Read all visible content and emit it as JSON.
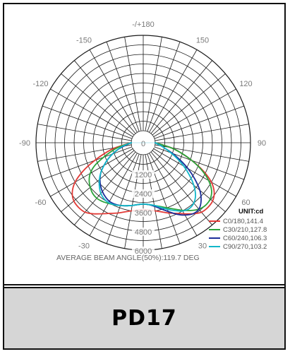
{
  "product": {
    "name": "PD17"
  },
  "chart_data": {
    "type": "polar",
    "angle_labels": [
      {
        "deg": 180,
        "text": "-/+180"
      },
      {
        "deg": -150,
        "text": "-150"
      },
      {
        "deg": 150,
        "text": "150"
      },
      {
        "deg": -120,
        "text": "-120"
      },
      {
        "deg": 120,
        "text": "120"
      },
      {
        "deg": -90,
        "text": "-90"
      },
      {
        "deg": 90,
        "text": "90"
      },
      {
        "deg": -60,
        "text": "-60"
      },
      {
        "deg": 60,
        "text": "60"
      },
      {
        "deg": -30,
        "text": "-30"
      },
      {
        "deg": 30,
        "text": "30"
      },
      {
        "deg": 0,
        "text": "0"
      }
    ],
    "radial_ticks": [
      {
        "value": 0,
        "text": "0"
      },
      {
        "value": 1200,
        "text": "1200"
      },
      {
        "value": 2400,
        "text": "2400"
      },
      {
        "value": 3600,
        "text": "3600"
      },
      {
        "value": 4800,
        "text": "4800"
      },
      {
        "value": 6000,
        "text": "6000"
      }
    ],
    "r_max": 6000,
    "r_inner": 600,
    "unit_label": "UNIT:cd",
    "beam_angle_text": "AVERAGE BEAM ANGLE(50%):119.7 DEG",
    "series": [
      {
        "name": "C0/180,141.4",
        "color": "#e23a36",
        "angles": [
          -90,
          -80,
          -75,
          -70,
          -65,
          -60,
          -55,
          -50,
          -45,
          -40,
          -35,
          -30,
          -25,
          -20,
          -15,
          -10,
          -5,
          0,
          5,
          10,
          15,
          20,
          25,
          30,
          35,
          40,
          45,
          50,
          55,
          60,
          65,
          70,
          75,
          80,
          90
        ],
        "values": [
          0,
          1000,
          1700,
          2500,
          3400,
          4200,
          4700,
          4950,
          5000,
          4950,
          4700,
          4400,
          4150,
          3950,
          3750,
          3600,
          3500,
          3450,
          3500,
          3600,
          3750,
          3950,
          4150,
          4400,
          4700,
          4950,
          5000,
          4950,
          4700,
          4200,
          3400,
          2500,
          1700,
          1000,
          0
        ]
      },
      {
        "name": "C30/210,127.8",
        "color": "#2ba33a",
        "angles": [
          -90,
          -80,
          -75,
          -70,
          -65,
          -60,
          -55,
          -50,
          -45,
          -40,
          -35,
          -30,
          -25,
          -20,
          -15,
          -10,
          -5,
          0,
          5,
          10,
          15,
          20,
          25,
          30,
          35,
          40,
          45,
          50,
          55,
          60,
          65,
          70,
          75,
          80,
          90
        ],
        "values": [
          0,
          800,
          1300,
          1900,
          2600,
          3100,
          3400,
          3600,
          3750,
          3800,
          3750,
          3650,
          3550,
          3450,
          3350,
          3250,
          3150,
          3100,
          3150,
          3250,
          3400,
          3600,
          3850,
          4150,
          4450,
          4700,
          4800,
          4750,
          4500,
          4000,
          3300,
          2500,
          1700,
          1000,
          0
        ]
      },
      {
        "name": "C60/240,106.3",
        "color": "#1c2f9a",
        "angles": [
          -90,
          -80,
          -75,
          -70,
          -65,
          -60,
          -55,
          -50,
          -45,
          -40,
          -35,
          -30,
          -25,
          -20,
          -15,
          -10,
          -5,
          0,
          5,
          10,
          15,
          20,
          25,
          30,
          35,
          40,
          45,
          50,
          55,
          60,
          65,
          70,
          75,
          80,
          90
        ],
        "values": [
          0,
          500,
          900,
          1300,
          1700,
          2100,
          2500,
          2800,
          3050,
          3250,
          3400,
          3500,
          3500,
          3450,
          3350,
          3250,
          3150,
          3100,
          3150,
          3300,
          3550,
          3850,
          4200,
          4500,
          4700,
          4700,
          4400,
          3900,
          3200,
          2500,
          1800,
          1200,
          700,
          400,
          0
        ]
      },
      {
        "name": "C90/270,103.2",
        "color": "#12b7c9",
        "angles": [
          -90,
          -80,
          -75,
          -70,
          -65,
          -60,
          -55,
          -50,
          -45,
          -40,
          -35,
          -30,
          -25,
          -20,
          -15,
          -10,
          -5,
          0,
          5,
          10,
          15,
          20,
          25,
          30,
          35,
          40,
          45,
          50,
          55,
          60,
          65,
          70,
          75,
          80,
          90
        ],
        "values": [
          0,
          600,
          900,
          1300,
          1700,
          2100,
          2500,
          2850,
          3150,
          3400,
          3550,
          3600,
          3550,
          3450,
          3350,
          3250,
          3150,
          3100,
          3150,
          3250,
          3450,
          3700,
          3950,
          4200,
          4300,
          4200,
          3900,
          3400,
          2800,
          2200,
          1600,
          1100,
          700,
          400,
          0
        ]
      }
    ]
  }
}
